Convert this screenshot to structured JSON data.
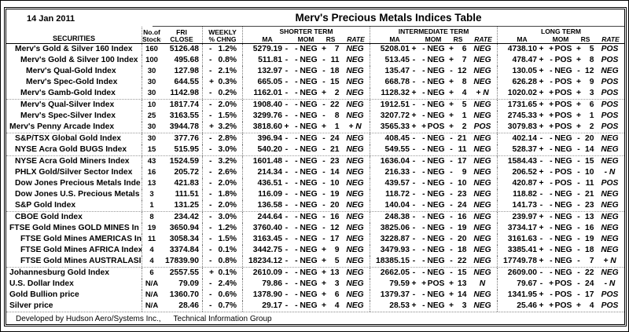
{
  "meta": {
    "date": "14 Jan 2011",
    "title": "Merv's Precious Metals Indices Table",
    "footer_left": "Developed by Hudson Aero/Systems Inc.,",
    "footer_right": "Technical Information Group"
  },
  "header": {
    "securities": "SECURITIES",
    "stocks_l1": "No.of",
    "stocks_l2": "Stocks",
    "close_l1": "FRI",
    "close_l2": "CLOSE",
    "chng_l1": "WEEKLY",
    "chng_l2": "% CHNG",
    "terms": [
      {
        "label": "SHORTER TERM"
      },
      {
        "label": "INTERMEDIATE TERM"
      },
      {
        "label": "LONG TERM"
      }
    ],
    "sub": {
      "ma": "MA",
      "mom": "MOM",
      "rs": "RS",
      "rate": "RATE"
    }
  },
  "colors": {
    "border": "#000000",
    "separator": "#999999",
    "background": "#ffffff",
    "text": "#000000"
  },
  "rows": [
    {
      "name": "Merv's Gold & Silver 160 Index",
      "indent": 1,
      "group": false,
      "stocks": "160",
      "close": "5126.48",
      "chg": [
        "-",
        "1.2%"
      ],
      "st": [
        "5279.19",
        "-",
        "-",
        "NEG",
        "+",
        "7",
        "NEG"
      ],
      "it": [
        "5208.01",
        "+",
        "-",
        "NEG",
        "+",
        "6",
        "NEG"
      ],
      "lt": [
        "4738.10",
        "+",
        "+",
        "POS",
        "+",
        "5",
        "POS"
      ]
    },
    {
      "name": "Merv's Gold & Silver 100 Index",
      "indent": 2,
      "group": false,
      "stocks": "100",
      "close": "495.68",
      "chg": [
        "-",
        "0.8%"
      ],
      "st": [
        "511.81",
        "-",
        "-",
        "NEG",
        "-",
        "11",
        "NEG"
      ],
      "it": [
        "513.45",
        "-",
        "-",
        "NEG",
        "+",
        "7",
        "NEG"
      ],
      "lt": [
        "478.47",
        "+",
        "-",
        "POS",
        "+",
        "8",
        "POS"
      ]
    },
    {
      "name": "Merv's Qual-Gold Index",
      "indent": 3,
      "group": false,
      "stocks": "30",
      "close": "127.98",
      "chg": [
        "-",
        "2.1%"
      ],
      "st": [
        "132.97",
        "-",
        "-",
        "NEG",
        "-",
        "18",
        "NEG"
      ],
      "it": [
        "135.47",
        "-",
        "-",
        "NEG",
        "-",
        "12",
        "NEG"
      ],
      "lt": [
        "130.05",
        "+",
        "-",
        "NEG",
        "-",
        "12",
        "NEG"
      ]
    },
    {
      "name": "Merv's Spec-Gold Index",
      "indent": 3,
      "group": false,
      "stocks": "30",
      "close": "644.55",
      "chg": [
        "+",
        "0.3%"
      ],
      "st": [
        "665.05",
        "-",
        "-",
        "NEG",
        "-",
        "15",
        "NEG"
      ],
      "it": [
        "668.78",
        "-",
        "-",
        "NEG",
        "+",
        "8",
        "NEG"
      ],
      "lt": [
        "626.28",
        "+",
        "-",
        "POS",
        "+",
        "9",
        "POS"
      ]
    },
    {
      "name": "Merv's Gamb-Gold Index",
      "indent": 2,
      "group": false,
      "stocks": "30",
      "close": "1142.98",
      "chg": [
        "-",
        "0.2%"
      ],
      "st": [
        "1162.01",
        "-",
        "-",
        "NEG",
        "+",
        "2",
        "NEG"
      ],
      "it": [
        "1128.32",
        "+",
        "-",
        "NEG",
        "+",
        "4",
        "+ N"
      ],
      "lt": [
        "1020.02",
        "+",
        "+",
        "POS",
        "+",
        "3",
        "POS"
      ]
    },
    {
      "name": "Merv's Qual-Silver Index",
      "indent": 2,
      "group": true,
      "stocks": "10",
      "close": "1817.74",
      "chg": [
        "-",
        "2.0%"
      ],
      "st": [
        "1908.40",
        "-",
        "-",
        "NEG",
        "-",
        "22",
        "NEG"
      ],
      "it": [
        "1912.51",
        "-",
        "-",
        "NEG",
        "+",
        "5",
        "NEG"
      ],
      "lt": [
        "1731.65",
        "+",
        "+",
        "POS",
        "+",
        "6",
        "POS"
      ]
    },
    {
      "name": "Merv's Spec-Silver Index",
      "indent": 2,
      "group": false,
      "stocks": "25",
      "close": "3163.55",
      "chg": [
        "-",
        "1.5%"
      ],
      "st": [
        "3299.76",
        "-",
        "-",
        "NEG",
        "-",
        "8",
        "NEG"
      ],
      "it": [
        "3207.72",
        "+",
        "-",
        "NEG",
        "+",
        "1",
        "NEG"
      ],
      "lt": [
        "2745.33",
        "+",
        "+",
        "POS",
        "+",
        "1",
        "POS"
      ]
    },
    {
      "name": "Merv's Penny Arcade Index",
      "indent": 0,
      "group": false,
      "stocks": "30",
      "close": "3944.78",
      "chg": [
        "+",
        "3.2%"
      ],
      "st": [
        "3818.60",
        "+",
        "-",
        "NEG",
        "+",
        "1",
        "+ N"
      ],
      "it": [
        "3565.33",
        "+",
        "+",
        "POS",
        "+",
        "2",
        "POS"
      ],
      "lt": [
        "3079.83",
        "+",
        "+",
        "POS",
        "+",
        "2",
        "POS"
      ]
    },
    {
      "name": "S&P/TSX Global Gold Index",
      "indent": 1,
      "group": true,
      "stocks": "30",
      "close": "377.76",
      "chg": [
        "-",
        "2.8%"
      ],
      "st": [
        "396.94",
        "-",
        "-",
        "NEG",
        "-",
        "24",
        "NEG"
      ],
      "it": [
        "408.45",
        "-",
        "-",
        "NEG",
        "-",
        "21",
        "NEG"
      ],
      "lt": [
        "402.14",
        "-",
        "-",
        "NEG",
        "-",
        "20",
        "NEG"
      ]
    },
    {
      "name": "NYSE Acra Gold BUGS Index",
      "indent": 1,
      "group": false,
      "stocks": "15",
      "close": "515.95",
      "chg": [
        "-",
        "3.0%"
      ],
      "st": [
        "540.20",
        "-",
        "-",
        "NEG",
        "-",
        "21",
        "NEG"
      ],
      "it": [
        "549.55",
        "-",
        "-",
        "NEG",
        "-",
        "11",
        "NEG"
      ],
      "lt": [
        "528.37",
        "+",
        "-",
        "NEG",
        "-",
        "14",
        "NEG"
      ]
    },
    {
      "name": "NYSE Acra Gold Miners Index",
      "indent": 1,
      "group": true,
      "stocks": "43",
      "close": "1524.59",
      "chg": [
        "-",
        "3.2%"
      ],
      "st": [
        "1601.48",
        "-",
        "-",
        "NEG",
        "-",
        "23",
        "NEG"
      ],
      "it": [
        "1636.04",
        "-",
        "-",
        "NEG",
        "-",
        "17",
        "NEG"
      ],
      "lt": [
        "1584.43",
        "-",
        "-",
        "NEG",
        "-",
        "15",
        "NEG"
      ]
    },
    {
      "name": "PHLX Gold/Silver Sector Index",
      "indent": 1,
      "group": false,
      "stocks": "16",
      "close": "205.72",
      "chg": [
        "-",
        "2.6%"
      ],
      "st": [
        "214.34",
        "-",
        "-",
        "NEG",
        "-",
        "14",
        "NEG"
      ],
      "it": [
        "216.33",
        "-",
        "-",
        "NEG",
        "-",
        "9",
        "NEG"
      ],
      "lt": [
        "206.52",
        "+",
        "-",
        "POS",
        "-",
        "10",
        "- N"
      ]
    },
    {
      "name": "Dow Jones Precious Metals Inde",
      "indent": 1,
      "group": false,
      "stocks": "13",
      "close": "421.83",
      "chg": [
        "-",
        "2.0%"
      ],
      "st": [
        "436.51",
        "-",
        "-",
        "NEG",
        "-",
        "10",
        "NEG"
      ],
      "it": [
        "439.57",
        "-",
        "-",
        "NEG",
        "-",
        "10",
        "NEG"
      ],
      "lt": [
        "420.87",
        "+",
        "-",
        "POS",
        "-",
        "11",
        "POS"
      ]
    },
    {
      "name": "Dow Jones U.S. Precious Metals",
      "indent": 1,
      "group": false,
      "stocks": "3",
      "close": "111.51",
      "chg": [
        "-",
        "1.8%"
      ],
      "st": [
        "116.09",
        "-",
        "-",
        "NEG",
        "-",
        "19",
        "NEG"
      ],
      "it": [
        "118.72",
        "-",
        "-",
        "NEG",
        "-",
        "23",
        "NEG"
      ],
      "lt": [
        "118.82",
        "-",
        "-",
        "NEG",
        "-",
        "21",
        "NEG"
      ]
    },
    {
      "name": "S&P Gold Index",
      "indent": 1,
      "group": false,
      "stocks": "1",
      "close": "131.25",
      "chg": [
        "-",
        "2.0%"
      ],
      "st": [
        "136.58",
        "-",
        "-",
        "NEG",
        "-",
        "20",
        "NEG"
      ],
      "it": [
        "140.04",
        "-",
        "-",
        "NEG",
        "-",
        "24",
        "NEG"
      ],
      "lt": [
        "141.73",
        "-",
        "-",
        "NEG",
        "-",
        "23",
        "NEG"
      ]
    },
    {
      "name": "CBOE Gold Index",
      "indent": 1,
      "group": true,
      "stocks": "8",
      "close": "234.42",
      "chg": [
        "-",
        "3.0%"
      ],
      "st": [
        "244.64",
        "-",
        "-",
        "NEG",
        "-",
        "16",
        "NEG"
      ],
      "it": [
        "248.38",
        "-",
        "-",
        "NEG",
        "-",
        "16",
        "NEG"
      ],
      "lt": [
        "239.97",
        "+",
        "-",
        "NEG",
        "-",
        "13",
        "NEG"
      ]
    },
    {
      "name": "FTSE Gold Mines GOLD MINES In",
      "indent": 0,
      "group": false,
      "stocks": "19",
      "close": "3650.94",
      "chg": [
        "-",
        "1.2%"
      ],
      "st": [
        "3760.40",
        "-",
        "-",
        "NEG",
        "-",
        "12",
        "NEG"
      ],
      "it": [
        "3825.06",
        "-",
        "-",
        "NEG",
        "-",
        "19",
        "NEG"
      ],
      "lt": [
        "3734.17",
        "+",
        "-",
        "NEG",
        "-",
        "16",
        "NEG"
      ]
    },
    {
      "name": "FTSE Gold Mines AMERICAS In",
      "indent": 2,
      "group": false,
      "stocks": "11",
      "close": "3058.34",
      "chg": [
        "-",
        "1.5%"
      ],
      "st": [
        "3163.45",
        "-",
        "-",
        "NEG",
        "-",
        "17",
        "NEG"
      ],
      "it": [
        "3228.87",
        "-",
        "-",
        "NEG",
        "-",
        "20",
        "NEG"
      ],
      "lt": [
        "3161.63",
        "-",
        "-",
        "NEG",
        "-",
        "19",
        "NEG"
      ]
    },
    {
      "name": "FTSE Gold Mines AFRICA Index",
      "indent": 2,
      "group": false,
      "stocks": "4",
      "close": "3374.84",
      "chg": [
        "-",
        "0.1%"
      ],
      "st": [
        "3442.75",
        "-",
        "-",
        "NEG",
        "+",
        "9",
        "NEG"
      ],
      "it": [
        "3479.93",
        "-",
        "-",
        "NEG",
        "-",
        "18",
        "NEG"
      ],
      "lt": [
        "3385.41",
        "+",
        "-",
        "NEG",
        "-",
        "18",
        "NEG"
      ]
    },
    {
      "name": "FTSE Gold Mines AUSTRALASI",
      "indent": 2,
      "group": false,
      "stocks": "4",
      "close": "17839.90",
      "chg": [
        "-",
        "0.8%"
      ],
      "st": [
        "18234.12",
        "-",
        "-",
        "NEG",
        "+",
        "5",
        "NEG"
      ],
      "it": [
        "18385.15",
        "-",
        "-",
        "NEG",
        "-",
        "22",
        "NEG"
      ],
      "lt": [
        "17749.78",
        "+",
        "-",
        "NEG",
        "-",
        "7",
        "+ N"
      ]
    },
    {
      "name": "Johannesburg Gold Index",
      "indent": 0,
      "group": true,
      "stocks": "6",
      "close": "2557.55",
      "chg": [
        "+",
        "0.1%"
      ],
      "st": [
        "2610.09",
        "-",
        "-",
        "NEG",
        "+",
        "13",
        "NEG"
      ],
      "it": [
        "2662.05",
        "-",
        "-",
        "NEG",
        "-",
        "15",
        "NEG"
      ],
      "lt": [
        "2609.00",
        "-",
        "-",
        "NEG",
        "-",
        "22",
        "NEG"
      ]
    },
    {
      "name": "U.S. Dollar Index",
      "indent": 0,
      "group": false,
      "stocks": "N/A",
      "close": "79.09",
      "chg": [
        "-",
        "2.4%"
      ],
      "st": [
        "79.86",
        "-",
        "-",
        "NEG",
        "+",
        "3",
        "NEG"
      ],
      "it": [
        "79.59",
        "+",
        "+",
        "POS",
        "+",
        "13",
        "N"
      ],
      "lt": [
        "79.67",
        "-",
        "+",
        "POS",
        "-",
        "24",
        "- N"
      ]
    },
    {
      "name": "Gold Bullion price",
      "indent": 0,
      "group": false,
      "stocks": "N/A",
      "close": "1360.70",
      "chg": [
        "-",
        "0.6%"
      ],
      "st": [
        "1378.90",
        "-",
        "-",
        "NEG",
        "+",
        "6",
        "NEG"
      ],
      "it": [
        "1379.37",
        "-",
        "-",
        "NEG",
        "+",
        "14",
        "NEG"
      ],
      "lt": [
        "1341.95",
        "+",
        "-",
        "POS",
        "-",
        "17",
        "POS"
      ]
    },
    {
      "name": "Silver price",
      "indent": 0,
      "group": false,
      "stocks": "N/A",
      "close": "28.46",
      "chg": [
        "-",
        "0.7%"
      ],
      "st": [
        "29.17",
        "-",
        "-",
        "NEG",
        "+",
        "4",
        "NEG"
      ],
      "it": [
        "28.53",
        "+",
        "-",
        "NEG",
        "+",
        "3",
        "NEG"
      ],
      "lt": [
        "25.46",
        "+",
        "+",
        "POS",
        "+",
        "4",
        "POS"
      ]
    }
  ]
}
